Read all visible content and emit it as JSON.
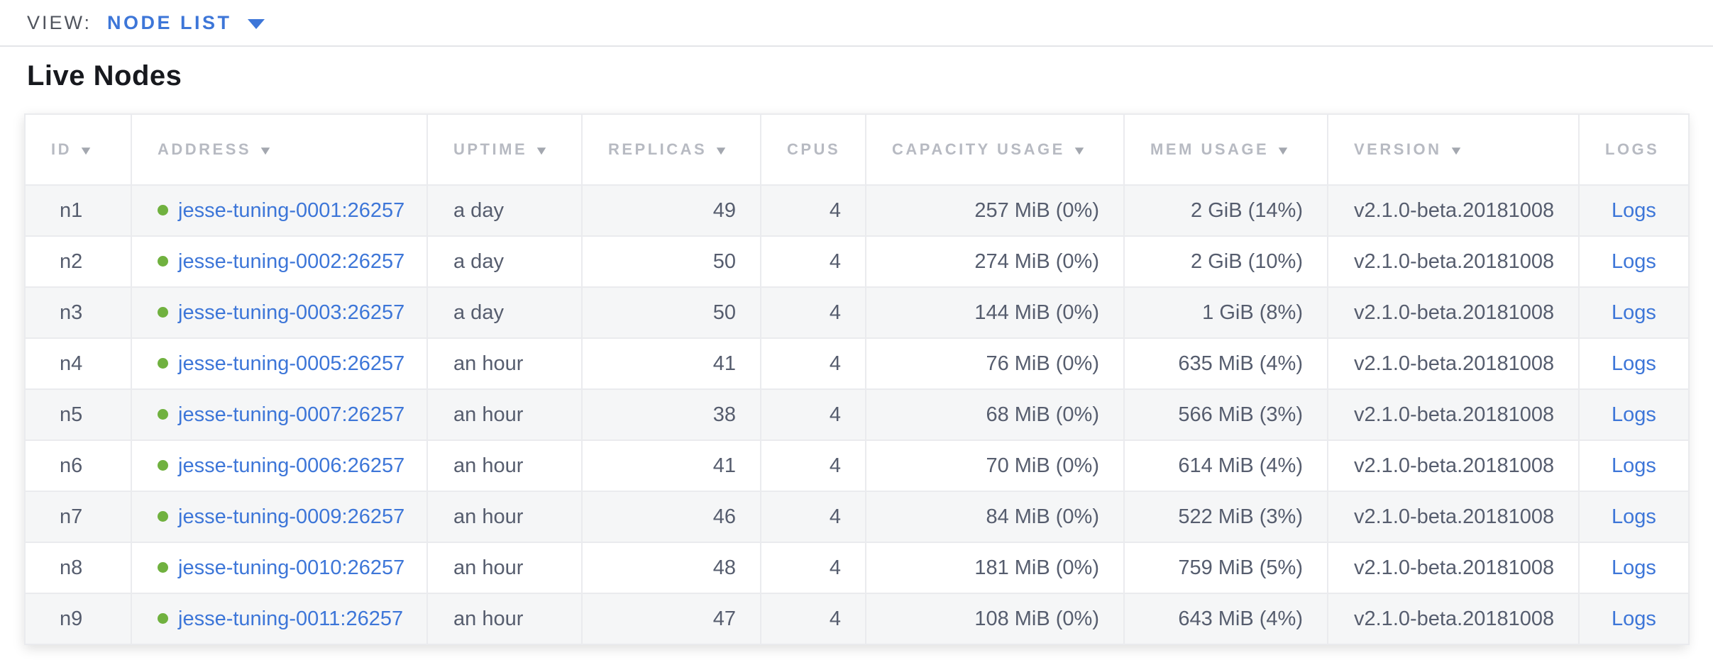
{
  "view_bar": {
    "label": "VIEW:",
    "selected_view": "NODE LIST"
  },
  "page": {
    "title": "Live Nodes"
  },
  "colors": {
    "link": "#3d76d8",
    "live_status_dot": "#70b13f",
    "header_text": "#b7bac2",
    "cell_text": "#565d6e"
  },
  "table": {
    "columns": [
      {
        "key": "id",
        "label": "ID",
        "sortable": true,
        "align": "left"
      },
      {
        "key": "address",
        "label": "ADDRESS",
        "sortable": true,
        "align": "left"
      },
      {
        "key": "uptime",
        "label": "UPTIME",
        "sortable": true,
        "align": "left"
      },
      {
        "key": "replicas",
        "label": "REPLICAS",
        "sortable": true,
        "align": "right"
      },
      {
        "key": "cpus",
        "label": "CPUS",
        "sortable": false,
        "align": "right"
      },
      {
        "key": "capacity",
        "label": "CAPACITY USAGE",
        "sortable": true,
        "align": "right"
      },
      {
        "key": "mem",
        "label": "MEM USAGE",
        "sortable": true,
        "align": "right"
      },
      {
        "key": "version",
        "label": "VERSION",
        "sortable": true,
        "align": "left"
      },
      {
        "key": "logs",
        "label": "LOGS",
        "sortable": false,
        "align": "center"
      }
    ],
    "rows": [
      {
        "id": "n1",
        "address": "jesse-tuning-0001:26257",
        "status": "live",
        "uptime": "a day",
        "replicas": "49",
        "cpus": "4",
        "capacity": "257 MiB (0%)",
        "mem": "2 GiB (14%)",
        "version": "v2.1.0-beta.20181008",
        "logs": "Logs"
      },
      {
        "id": "n2",
        "address": "jesse-tuning-0002:26257",
        "status": "live",
        "uptime": "a day",
        "replicas": "50",
        "cpus": "4",
        "capacity": "274 MiB (0%)",
        "mem": "2 GiB (10%)",
        "version": "v2.1.0-beta.20181008",
        "logs": "Logs"
      },
      {
        "id": "n3",
        "address": "jesse-tuning-0003:26257",
        "status": "live",
        "uptime": "a day",
        "replicas": "50",
        "cpus": "4",
        "capacity": "144 MiB (0%)",
        "mem": "1 GiB (8%)",
        "version": "v2.1.0-beta.20181008",
        "logs": "Logs"
      },
      {
        "id": "n4",
        "address": "jesse-tuning-0005:26257",
        "status": "live",
        "uptime": "an hour",
        "replicas": "41",
        "cpus": "4",
        "capacity": "76 MiB (0%)",
        "mem": "635 MiB (4%)",
        "version": "v2.1.0-beta.20181008",
        "logs": "Logs"
      },
      {
        "id": "n5",
        "address": "jesse-tuning-0007:26257",
        "status": "live",
        "uptime": "an hour",
        "replicas": "38",
        "cpus": "4",
        "capacity": "68 MiB (0%)",
        "mem": "566 MiB (3%)",
        "version": "v2.1.0-beta.20181008",
        "logs": "Logs"
      },
      {
        "id": "n6",
        "address": "jesse-tuning-0006:26257",
        "status": "live",
        "uptime": "an hour",
        "replicas": "41",
        "cpus": "4",
        "capacity": "70 MiB (0%)",
        "mem": "614 MiB (4%)",
        "version": "v2.1.0-beta.20181008",
        "logs": "Logs"
      },
      {
        "id": "n7",
        "address": "jesse-tuning-0009:26257",
        "status": "live",
        "uptime": "an hour",
        "replicas": "46",
        "cpus": "4",
        "capacity": "84 MiB (0%)",
        "mem": "522 MiB (3%)",
        "version": "v2.1.0-beta.20181008",
        "logs": "Logs"
      },
      {
        "id": "n8",
        "address": "jesse-tuning-0010:26257",
        "status": "live",
        "uptime": "an hour",
        "replicas": "48",
        "cpus": "4",
        "capacity": "181 MiB (0%)",
        "mem": "759 MiB (5%)",
        "version": "v2.1.0-beta.20181008",
        "logs": "Logs"
      },
      {
        "id": "n9",
        "address": "jesse-tuning-0011:26257",
        "status": "live",
        "uptime": "an hour",
        "replicas": "47",
        "cpus": "4",
        "capacity": "108 MiB (0%)",
        "mem": "643 MiB (4%)",
        "version": "v2.1.0-beta.20181008",
        "logs": "Logs"
      }
    ],
    "sort_icon": "▼"
  }
}
